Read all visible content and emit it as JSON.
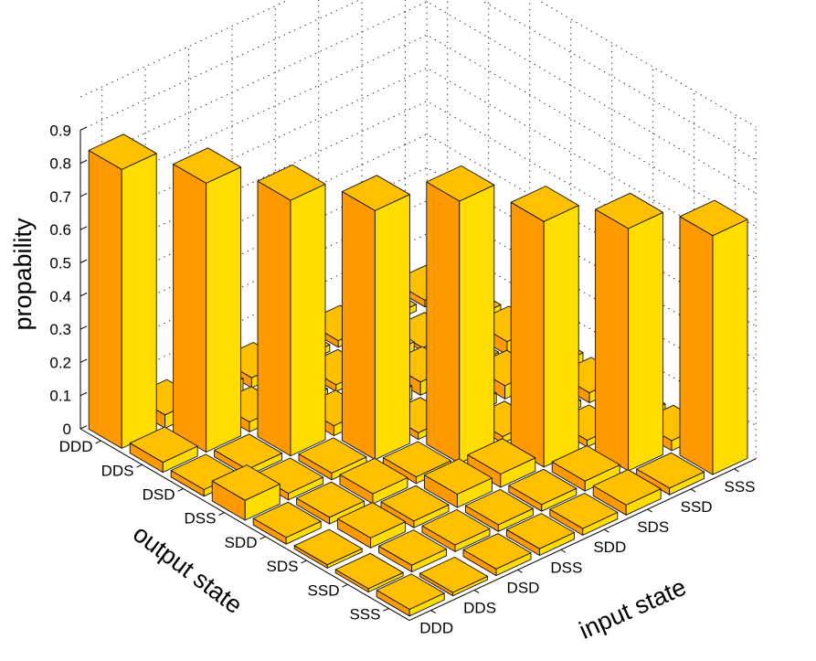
{
  "chart_data": {
    "type": "bar3d",
    "zlabel": "propability",
    "xlabel": "input state",
    "ylabel": "output state",
    "input_states": [
      "DDD",
      "DDS",
      "DSD",
      "DSS",
      "SDD",
      "SDS",
      "SSD",
      "SSS"
    ],
    "output_states": [
      "DDD",
      "DDS",
      "DSD",
      "DSS",
      "SDD",
      "SDS",
      "SSD",
      "SSS"
    ],
    "zlim": [
      0,
      0.9
    ],
    "zticks": [
      "0",
      "0.1",
      "0.2",
      "0.3",
      "0.4",
      "0.5",
      "0.6",
      "0.7",
      "0.8",
      "0.9"
    ],
    "grid": true,
    "colors": {
      "left_face": "#ff9900",
      "right_face": "#ffdd00",
      "top_face": "#ffc000",
      "edge": "#111111"
    },
    "values_note_rows_output_cols_input": true,
    "values": [
      [
        0.84,
        0.04,
        0.04,
        0.03,
        0.02,
        0.02,
        0.02,
        0.02
      ],
      [
        0.03,
        0.81,
        0.03,
        0.02,
        0.02,
        0.04,
        0.01,
        0.03
      ],
      [
        0.02,
        0.02,
        0.77,
        0.03,
        0.04,
        0.04,
        0.02,
        0.04
      ],
      [
        0.06,
        0.02,
        0.02,
        0.75,
        0.02,
        0.03,
        0.04,
        0.03
      ],
      [
        0.02,
        0.02,
        0.03,
        0.02,
        0.79,
        0.02,
        0.02,
        0.03
      ],
      [
        0.01,
        0.03,
        0.02,
        0.04,
        0.04,
        0.74,
        0.02,
        0.02
      ],
      [
        0.01,
        0.02,
        0.02,
        0.02,
        0.02,
        0.03,
        0.73,
        0.03
      ],
      [
        0.02,
        0.01,
        0.02,
        0.02,
        0.02,
        0.03,
        0.02,
        0.72
      ]
    ]
  }
}
